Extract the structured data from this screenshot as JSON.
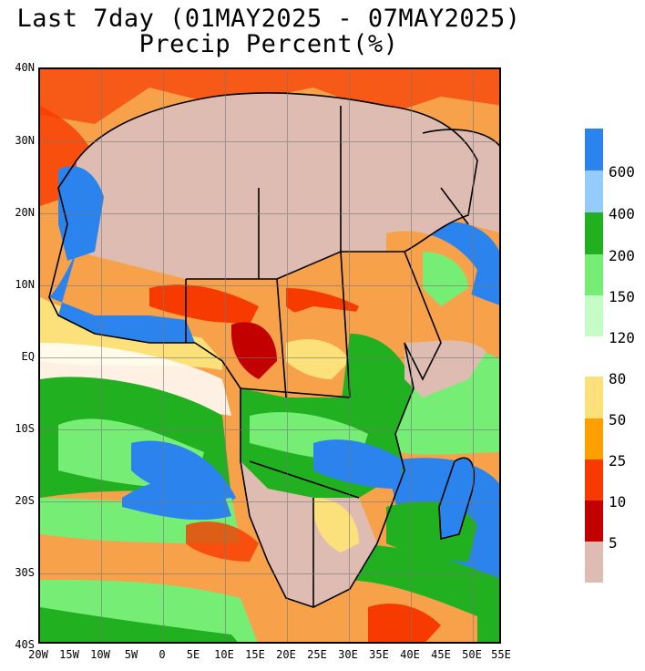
{
  "header": {
    "title_line1": "Last 7day (01MAY2025 - 07MAY2025)",
    "title_line2": "Precip Percent(%)"
  },
  "axes": {
    "lat_labels": [
      "40N",
      "30N",
      "20N",
      "10N",
      "EQ",
      "10S",
      "20S",
      "30S",
      "40S"
    ],
    "lon_labels": [
      "20W",
      "15W",
      "10W",
      "5W",
      "0",
      "5E",
      "10E",
      "15E",
      "20E",
      "25E",
      "30E",
      "35E",
      "40E",
      "45E",
      "50E",
      "55E"
    ]
  },
  "legend_upper": {
    "colors": [
      "#2b84ee",
      "#96ccfc",
      "#20b020",
      "#76ee76",
      "#c6fcc6"
    ],
    "labels": [
      "600",
      "400",
      "200",
      "150",
      "120"
    ]
  },
  "legend_lower": {
    "colors": [
      "#fce17b",
      "#fca000",
      "#f73b00",
      "#c20000",
      "#dfbcb1"
    ],
    "labels": [
      "80",
      "50",
      "25",
      "10",
      "5"
    ]
  }
}
